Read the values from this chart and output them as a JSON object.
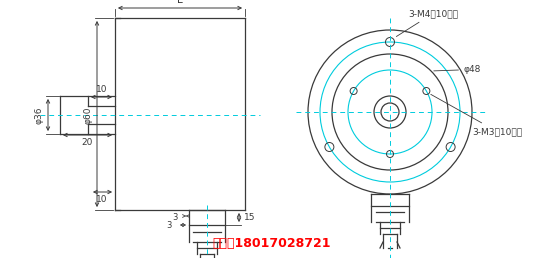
{
  "bg_color": "#ffffff",
  "line_color": "#3a3a3a",
  "cyan_color": "#00ccdd",
  "red_color": "#ff0000",
  "title_text": "手机：18017028721",
  "label_L": "L",
  "label_phi60": "φ60",
  "label_phi36": "φ36",
  "label_20": "20",
  "label_10a": "10",
  "label_10b": "10",
  "label_15": "15",
  "label_3a": "3",
  "label_3b": "3",
  "label_phi48": "φ48",
  "label_3M4": "3-M4深10均布",
  "label_3M3": "3-M3深10均布"
}
